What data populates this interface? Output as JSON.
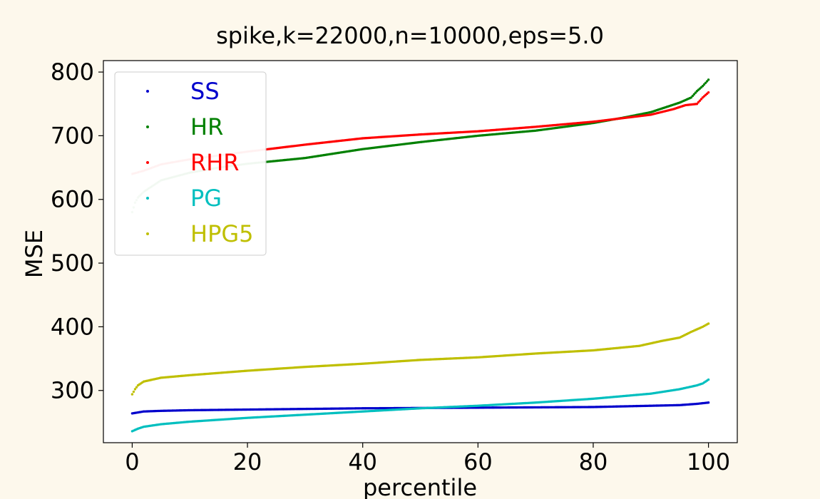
{
  "chart_data": {
    "type": "scatter",
    "title": "spike,k=22000,n=10000,eps=5.0",
    "xlabel": "percentile",
    "ylabel": "MSE",
    "xlim": [
      -5,
      105
    ],
    "ylim": [
      218,
      818
    ],
    "xticks": [
      0,
      20,
      40,
      60,
      80,
      100
    ],
    "yticks": [
      300,
      400,
      500,
      600,
      700,
      800
    ],
    "grid": false,
    "legend_position": "top-left",
    "series": [
      {
        "name": "SS",
        "color": "#0000cc",
        "keypoints": [
          [
            0,
            264
          ],
          [
            2,
            267
          ],
          [
            5,
            268
          ],
          [
            10,
            269
          ],
          [
            20,
            270
          ],
          [
            30,
            271
          ],
          [
            40,
            272
          ],
          [
            50,
            272.5
          ],
          [
            60,
            273
          ],
          [
            70,
            273.5
          ],
          [
            80,
            274
          ],
          [
            90,
            276
          ],
          [
            95,
            277
          ],
          [
            98,
            279
          ],
          [
            100,
            281
          ]
        ]
      },
      {
        "name": "HR",
        "color": "#008000",
        "keypoints": [
          [
            0,
            580
          ],
          [
            0.5,
            595
          ],
          [
            1,
            603
          ],
          [
            2,
            612
          ],
          [
            3,
            618
          ],
          [
            5,
            630
          ],
          [
            10,
            642
          ],
          [
            15,
            650
          ],
          [
            20,
            656
          ],
          [
            30,
            665
          ],
          [
            40,
            679
          ],
          [
            50,
            690
          ],
          [
            60,
            700
          ],
          [
            70,
            708
          ],
          [
            80,
            720
          ],
          [
            85,
            728
          ],
          [
            90,
            737
          ],
          [
            95,
            752
          ],
          [
            97,
            760
          ],
          [
            98,
            770
          ],
          [
            99,
            778
          ],
          [
            100,
            788
          ]
        ]
      },
      {
        "name": "RHR",
        "color": "#ff0000",
        "keypoints": [
          [
            0,
            640
          ],
          [
            2,
            645
          ],
          [
            5,
            655
          ],
          [
            10,
            663
          ],
          [
            20,
            675
          ],
          [
            30,
            686
          ],
          [
            40,
            696
          ],
          [
            50,
            702
          ],
          [
            60,
            707
          ],
          [
            70,
            714
          ],
          [
            80,
            722
          ],
          [
            90,
            733
          ],
          [
            94,
            742
          ],
          [
            96,
            748
          ],
          [
            98,
            750
          ],
          [
            99,
            760
          ],
          [
            100,
            768
          ]
        ]
      },
      {
        "name": "PG",
        "color": "#00bfbf",
        "keypoints": [
          [
            0,
            236
          ],
          [
            1,
            240
          ],
          [
            2,
            243
          ],
          [
            5,
            247
          ],
          [
            10,
            251
          ],
          [
            20,
            257
          ],
          [
            30,
            262
          ],
          [
            40,
            267
          ],
          [
            50,
            272
          ],
          [
            60,
            276
          ],
          [
            70,
            281
          ],
          [
            80,
            287
          ],
          [
            90,
            295
          ],
          [
            95,
            302
          ],
          [
            98,
            308
          ],
          [
            99,
            311
          ],
          [
            100,
            317
          ]
        ]
      },
      {
        "name": "HPG5",
        "color": "#bfbf00",
        "keypoints": [
          [
            0,
            294
          ],
          [
            0.5,
            302
          ],
          [
            1,
            308
          ],
          [
            2,
            314
          ],
          [
            5,
            320
          ],
          [
            10,
            324
          ],
          [
            20,
            331
          ],
          [
            30,
            337
          ],
          [
            40,
            342
          ],
          [
            50,
            348
          ],
          [
            60,
            352
          ],
          [
            70,
            358
          ],
          [
            80,
            363
          ],
          [
            88,
            370
          ],
          [
            92,
            378
          ],
          [
            95,
            383
          ],
          [
            97,
            392
          ],
          [
            99,
            400
          ],
          [
            100,
            405
          ]
        ]
      }
    ]
  }
}
